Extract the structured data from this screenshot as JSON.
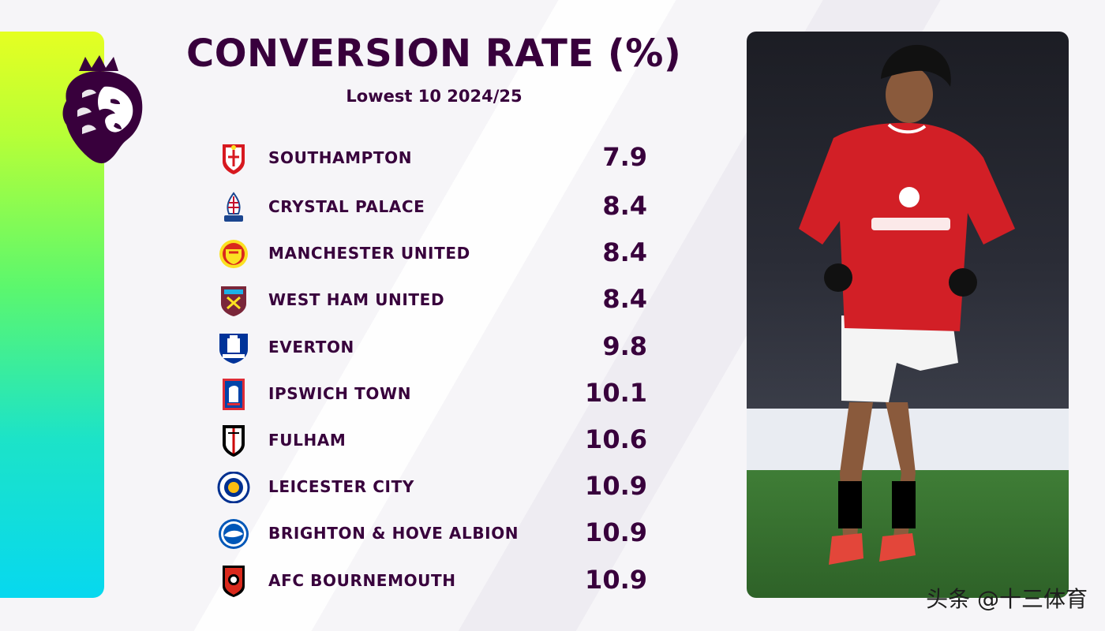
{
  "header": {
    "title": "CONVERSION RATE (%)",
    "subtitle": "Lowest 10 2024/25"
  },
  "chart_data": {
    "type": "table",
    "title": "CONVERSION RATE (%)",
    "subtitle": "Lowest 10 2024/25",
    "columns": [
      "team",
      "conversion_rate"
    ],
    "rows": [
      {
        "team": "SOUTHAMPTON",
        "value": "7.9"
      },
      {
        "team": "CRYSTAL PALACE",
        "value": "8.4"
      },
      {
        "team": "MANCHESTER UNITED",
        "value": "8.4"
      },
      {
        "team": "WEST HAM UNITED",
        "value": "8.4"
      },
      {
        "team": "EVERTON",
        "value": "9.8"
      },
      {
        "team": "IPSWICH TOWN",
        "value": "10.1"
      },
      {
        "team": "FULHAM",
        "value": "10.6"
      },
      {
        "team": "LEICESTER CITY",
        "value": "10.9"
      },
      {
        "team": "BRIGHTON & HOVE ALBION",
        "value": "10.9"
      },
      {
        "team": "AFC BOURNEMOUTH",
        "value": "10.9"
      }
    ]
  },
  "crests": [
    {
      "icon": "southampton-crest-icon",
      "primary": "#d71920",
      "secondary": "#ffffff"
    },
    {
      "icon": "crystal-palace-crest-icon",
      "primary": "#1b458f",
      "secondary": "#c4122e"
    },
    {
      "icon": "manchester-united-crest-icon",
      "primary": "#da291c",
      "secondary": "#fbe122"
    },
    {
      "icon": "west-ham-crest-icon",
      "primary": "#7a263a",
      "secondary": "#1bb1e7"
    },
    {
      "icon": "everton-crest-icon",
      "primary": "#003399",
      "secondary": "#ffffff"
    },
    {
      "icon": "ipswich-crest-icon",
      "primary": "#0044a9",
      "secondary": "#de2c37"
    },
    {
      "icon": "fulham-crest-icon",
      "primary": "#000000",
      "secondary": "#cc0000"
    },
    {
      "icon": "leicester-crest-icon",
      "primary": "#003090",
      "secondary": "#fdbe11"
    },
    {
      "icon": "brighton-crest-icon",
      "primary": "#0057b8",
      "secondary": "#ffffff"
    },
    {
      "icon": "bournemouth-crest-icon",
      "primary": "#da291c",
      "secondary": "#000000"
    }
  ],
  "colors": {
    "brand_purple": "#38003c",
    "gradient_top": "#e5ff22",
    "gradient_bottom": "#07d8ef",
    "kit_red": "#d21f26"
  },
  "watermark": "头条 @十三体育",
  "logo_icon": "premier-league-lion-icon",
  "photo_icon": "player-photo"
}
